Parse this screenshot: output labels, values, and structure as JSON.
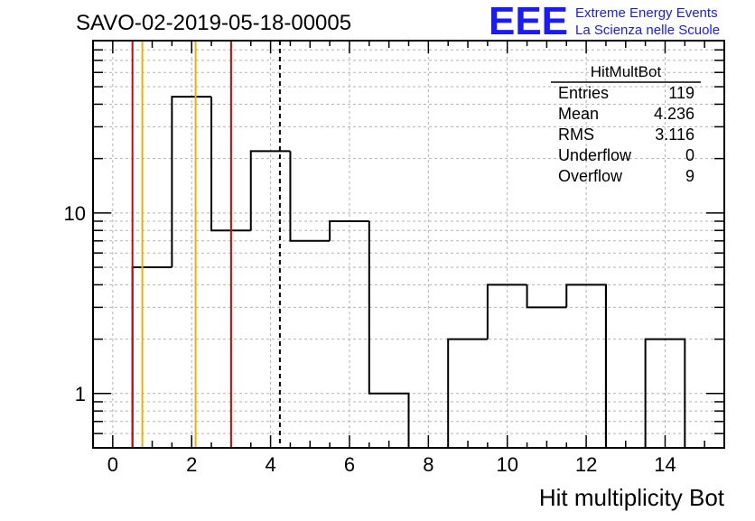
{
  "chart_data": {
    "type": "bar",
    "title": "SAVO-02-2019-05-18-00005",
    "xlabel": "Hit multiplicity Bot",
    "ylabel": "",
    "y_scale": "log",
    "xlim": [
      -0.5,
      15.5
    ],
    "ylim": [
      0.5,
      90
    ],
    "x_ticks": [
      0,
      2,
      4,
      6,
      8,
      10,
      12,
      14
    ],
    "x_tick_labels": [
      "0",
      "2",
      "4",
      "6",
      "8",
      "10",
      "12",
      "14"
    ],
    "y_tick_labels": [
      {
        "value": 1,
        "label": "1"
      },
      {
        "value": 10,
        "label": "10"
      }
    ],
    "grid": true,
    "bins": [
      {
        "low": 0.5,
        "high": 1.5,
        "value": 5
      },
      {
        "low": 1.5,
        "high": 2.5,
        "value": 44
      },
      {
        "low": 2.5,
        "high": 3.5,
        "value": 8
      },
      {
        "low": 3.5,
        "high": 4.5,
        "value": 22
      },
      {
        "low": 4.5,
        "high": 5.5,
        "value": 7
      },
      {
        "low": 5.5,
        "high": 6.5,
        "value": 9
      },
      {
        "low": 6.5,
        "high": 7.5,
        "value": 1
      },
      {
        "low": 7.5,
        "high": 8.5,
        "value": 0
      },
      {
        "low": 8.5,
        "high": 9.5,
        "value": 2
      },
      {
        "low": 9.5,
        "high": 10.5,
        "value": 4
      },
      {
        "low": 10.5,
        "high": 11.5,
        "value": 3
      },
      {
        "low": 11.5,
        "high": 12.5,
        "value": 4
      },
      {
        "low": 12.5,
        "high": 13.5,
        "value": 0
      },
      {
        "low": 13.5,
        "high": 14.5,
        "value": 2
      }
    ],
    "vlines": [
      {
        "x": 0.5,
        "color": "#dd0000",
        "style": "solid"
      },
      {
        "x": 3.0,
        "color": "#dd0000",
        "style": "solid"
      },
      {
        "x": 0.75,
        "color": "#f0b000",
        "style": "solid"
      },
      {
        "x": 2.1,
        "color": "#f0b000",
        "style": "solid"
      },
      {
        "x": 4.236,
        "color": "#000000",
        "style": "dashed"
      }
    ],
    "stats": {
      "title": "HitMultBot",
      "rows": [
        {
          "label": "Entries",
          "value": "119"
        },
        {
          "label": "Mean",
          "value": "4.236"
        },
        {
          "label": "RMS",
          "value": "3.116"
        },
        {
          "label": "Underflow",
          "value": "0"
        },
        {
          "label": "Overflow",
          "value": "9"
        }
      ]
    },
    "logo": {
      "mark": "EEE",
      "line1": "Extreme Energy Events",
      "line2": "La Scienza nelle Scuole",
      "color": "#1a1aff"
    }
  }
}
